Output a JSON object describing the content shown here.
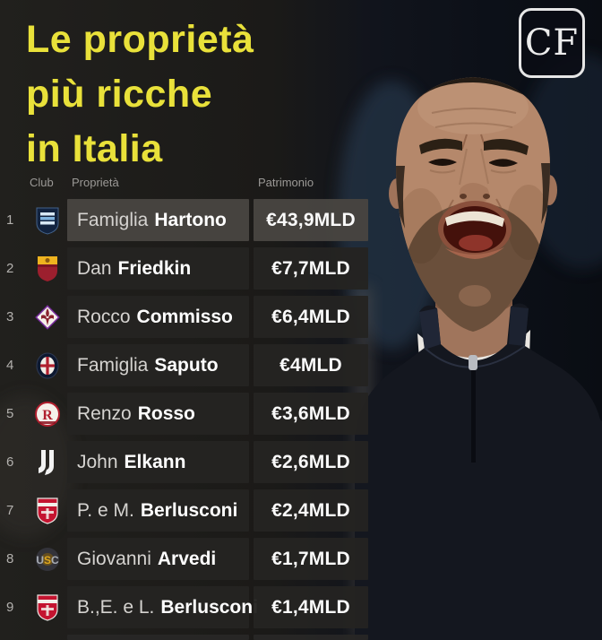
{
  "logo": {
    "text": "CF"
  },
  "title": {
    "line1": "Le proprietà",
    "line2": "più ricche",
    "line3": "in Italia"
  },
  "table": {
    "headers": {
      "club": "Club",
      "owner": "Proprietà",
      "wealth": "Patrimonio"
    },
    "rows": [
      {
        "rank": "1",
        "club": "como",
        "owner_first": "Famiglia",
        "owner_last": "Hartono",
        "wealth": "€43,9MLD",
        "highlight": true
      },
      {
        "rank": "2",
        "club": "roma",
        "owner_first": "Dan",
        "owner_last": "Friedkin",
        "wealth": "€7,7MLD"
      },
      {
        "rank": "3",
        "club": "fiorentina",
        "owner_first": "Rocco",
        "owner_last": "Commisso",
        "wealth": "€6,4MLD"
      },
      {
        "rank": "4",
        "club": "bologna",
        "owner_first": "Famiglia",
        "owner_last": "Saputo",
        "wealth": "€4MLD"
      },
      {
        "rank": "5",
        "club": "vicenza",
        "owner_first": "Renzo",
        "owner_last": "Rosso",
        "wealth": "€3,6MLD"
      },
      {
        "rank": "6",
        "club": "juventus",
        "owner_first": "John",
        "owner_last": "Elkann",
        "wealth": "€2,6MLD"
      },
      {
        "rank": "7",
        "club": "monza",
        "owner_first": "P. e M.",
        "owner_last": "Berlusconi",
        "wealth": "€2,4MLD"
      },
      {
        "rank": "8",
        "club": "cremonese",
        "owner_first": "Giovanni",
        "owner_last": "Arvedi",
        "wealth": "€1,7MLD"
      },
      {
        "rank": "9",
        "club": "monza",
        "owner_first": "B.,E. e L.",
        "owner_last": "Berlusconi",
        "wealth": "€1,4MLD"
      }
    ]
  },
  "colors": {
    "accent_yellow": "#e9e13a",
    "row_bg": "#242321",
    "row_highlight_bg": "#484541",
    "text_primary": "#ffffff",
    "text_secondary": "#d5d3d0",
    "text_muted": "#9b9996"
  }
}
